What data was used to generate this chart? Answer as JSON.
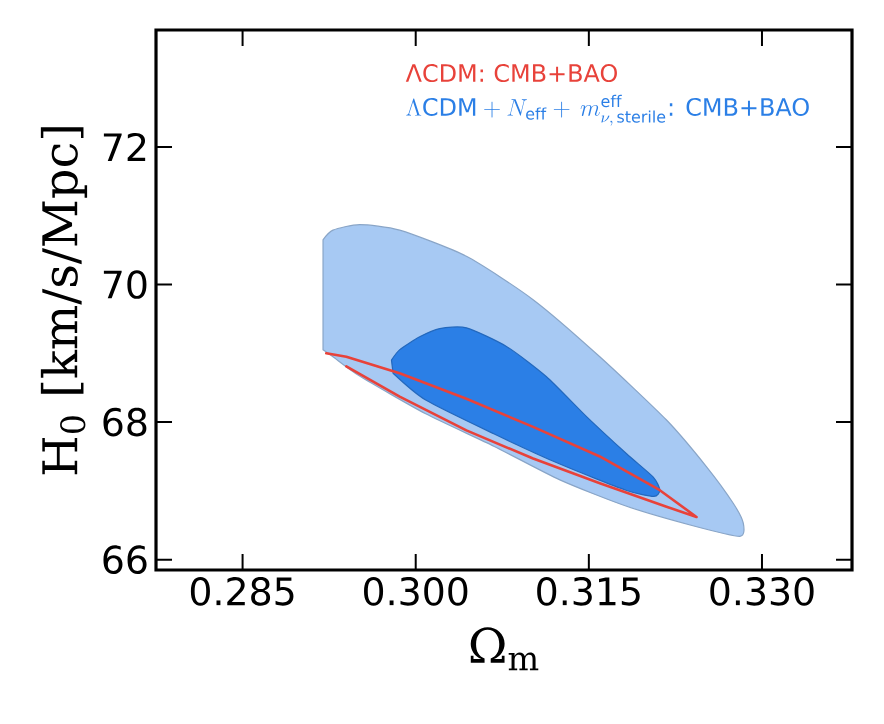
{
  "chart_data": {
    "type": "area",
    "xlabel": "Ω$_{m}$",
    "ylabel": "H$_{0}$ [km/s/Mpc]",
    "xlim": [
      0.2775,
      0.3378
    ],
    "ylim": [
      65.85,
      73.7
    ],
    "xticks": [
      0.285,
      {
        "value": 0.3,
        "label": "0.300"
      },
      0.315,
      {
        "value": 0.33,
        "label": "0.330"
      }
    ],
    "yticks": [
      66,
      68,
      70,
      72
    ],
    "legend": "top right",
    "series": [
      {
        "color": "#a7c9f3",
        "x": [
          0.29197,
          0.29283,
          0.29514,
          0.29861,
          0.30439,
          0.31017,
          0.31595,
          0.32173,
          0.3252,
          0.32751,
          0.32838,
          0.32809,
          0.3241,
          0.31821,
          0.31249,
          0.30676,
          0.30087,
          0.29514,
          0.29283,
          0.29197
        ],
        "values": [
          70.65,
          70.79,
          70.87,
          70.79,
          70.41,
          69.78,
          68.95,
          68.03,
          67.35,
          66.82,
          66.53,
          66.34,
          66.49,
          66.78,
          67.16,
          67.65,
          68.12,
          68.67,
          68.95,
          69.05
        ]
      },
      {
        "name": "\\Lambda\\mbox{CDM}+N_{\\rm eff}+\\, m^{\\rm eff}_{\\nu,\\,\\rm sterile}\\mbox{: CMB+BAO}",
        "color": "#2b7fe6",
        "x": [
          0.2979,
          0.2986,
          0.30035,
          0.30208,
          0.30439,
          0.30786,
          0.31133,
          0.3148,
          0.31827,
          0.32058,
          0.32115,
          0.32063,
          0.31821,
          0.31249,
          0.30676,
          0.30087,
          0.29804
        ],
        "values": [
          68.9,
          69.05,
          69.24,
          69.36,
          69.37,
          69.1,
          68.66,
          68.08,
          67.54,
          67.2,
          67.01,
          66.92,
          67.01,
          67.39,
          67.83,
          68.32,
          68.71
        ]
      },
      {
        "type": "line",
        "name": "ΛCDM: CMB+BAO",
        "color": "#e8423a",
        "x": [
          0.29225,
          0.29399,
          0.29861,
          0.30439,
          0.31017,
          0.31595,
          0.32115,
          0.32433,
          0.32173,
          0.31595,
          0.31017,
          0.30439,
          0.29861,
          0.29399
        ],
        "values": [
          69.0,
          68.95,
          68.71,
          68.34,
          67.93,
          67.5,
          67.01,
          66.62,
          66.77,
          67.11,
          67.47,
          67.88,
          68.37,
          68.81
        ]
      }
    ]
  }
}
